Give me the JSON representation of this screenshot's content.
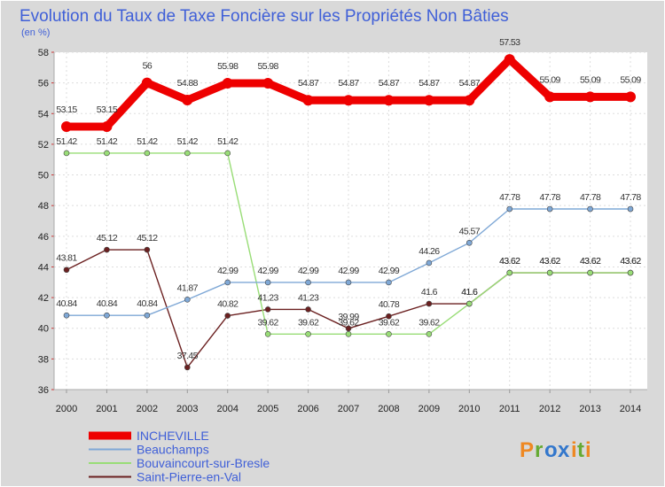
{
  "chart_data": {
    "type": "line",
    "title": "Evolution du Taux de Taxe Foncière sur les Propriétés Non Bâties",
    "subtitle": "(en %)",
    "xlabel": "",
    "ylabel": "",
    "x": [
      "2000",
      "2001",
      "2002",
      "2003",
      "2004",
      "2005",
      "2006",
      "2007",
      "2008",
      "2009",
      "2010",
      "2011",
      "2012",
      "2013",
      "2014"
    ],
    "ylim": [
      36,
      58
    ],
    "yticks": [
      "36",
      "38",
      "40",
      "42",
      "44",
      "46",
      "48",
      "50",
      "52",
      "54",
      "56",
      "58"
    ],
    "grid": true,
    "legend_position": "bottom-left",
    "series": [
      {
        "name": "INCHEVILLE",
        "color": "#ee0000",
        "values": [
          53.15,
          53.15,
          56,
          54.88,
          55.98,
          55.98,
          54.87,
          54.87,
          54.87,
          54.87,
          54.87,
          57.53,
          55.09,
          55.09,
          55.09
        ],
        "labels": [
          "53.15",
          "53.15",
          "56",
          "54.88",
          "55.98",
          "55.98",
          "54.87",
          "54.87",
          "54.87",
          "54.87",
          "54.87",
          "57.53",
          "55.09",
          "55.09",
          "55.09"
        ]
      },
      {
        "name": "Beauchamps",
        "color": "#7fa8d6",
        "values": [
          40.84,
          40.84,
          40.84,
          41.87,
          42.99,
          42.99,
          42.99,
          42.99,
          42.99,
          44.26,
          45.57,
          47.78,
          47.78,
          47.78,
          47.78
        ],
        "labels": [
          "40.84",
          "40.84",
          "40.84",
          "41.87",
          "42.99",
          "42.99",
          "42.99",
          "42.99",
          "42.99",
          "44.26",
          "45.57",
          "47.78",
          "47.78",
          "47.78",
          "47.78"
        ]
      },
      {
        "name": "Bouvaincourt-sur-Bresle",
        "color": "#99dd77",
        "values": [
          51.42,
          51.42,
          51.42,
          51.42,
          51.42,
          39.62,
          39.62,
          39.62,
          39.62,
          39.62,
          41.6,
          43.62,
          43.62,
          43.62,
          43.62
        ],
        "labels": [
          "51.42",
          "51.42",
          "51.42",
          "51.42",
          "51.42",
          "39.62",
          "39.62",
          "39.62",
          "39.62",
          "39.62",
          "41.6",
          "43.62",
          "43.62",
          "43.62",
          "43.62"
        ]
      },
      {
        "name": "Saint-Pierre-en-Val",
        "color": "#6b2020",
        "values": [
          43.81,
          45.12,
          45.12,
          37.45,
          40.82,
          41.23,
          41.23,
          39.99,
          40.78,
          41.6,
          41.6,
          43.62,
          43.62,
          43.62,
          43.62
        ],
        "labels": [
          "43.81",
          "45.12",
          "45.12",
          "37.45",
          "40.82",
          "41.23",
          "41.23",
          "39.99",
          "40.78",
          "41.6",
          "41.6",
          "43.62",
          "43.62",
          "43.62",
          "43.62"
        ]
      }
    ]
  },
  "logo": {
    "letters": [
      "P",
      "r",
      "o",
      "x",
      "i",
      "t",
      "i"
    ],
    "colors": [
      "#ee8822",
      "#66aa33",
      "#3377cc",
      "#3377cc",
      "#ee8822",
      "#66aa33",
      "#ee8822"
    ]
  }
}
